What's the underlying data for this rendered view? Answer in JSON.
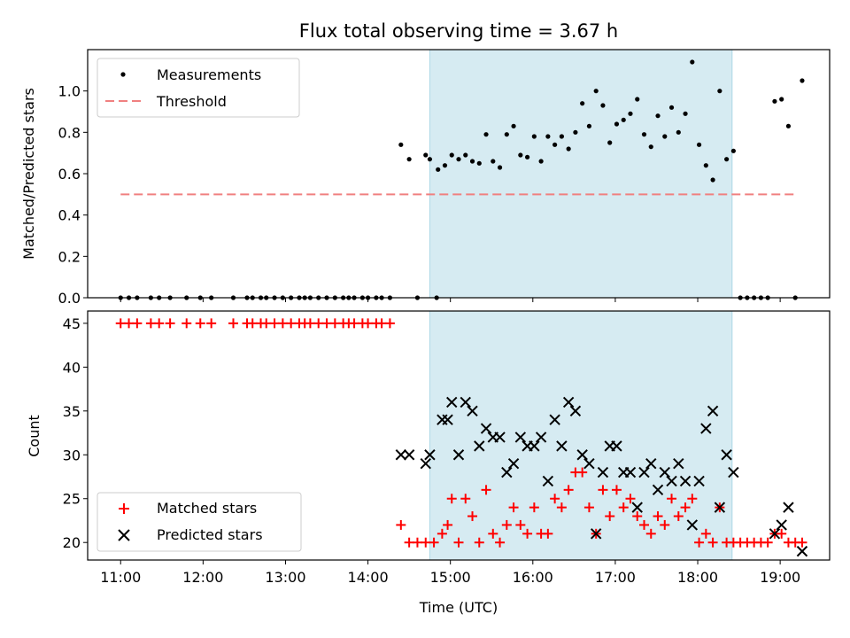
{
  "figure": {
    "title": "Flux total observing time = 3.67 h",
    "xlabel": "Time (UTC)"
  },
  "chart_data": [
    {
      "type": "scatter",
      "panel": "top",
      "ylabel": "Matched/Predicted stars",
      "xlim": [
        "10:36",
        "19:36"
      ],
      "ylim": [
        0,
        1.2
      ],
      "yticks": [
        "0.0",
        "0.2",
        "0.4",
        "0.6",
        "0.8",
        "1.0"
      ],
      "shaded_interval": [
        "14:45",
        "18:25"
      ],
      "threshold": {
        "name": "Threshold",
        "value": 0.5,
        "x": [
          "11:00",
          "19:10"
        ],
        "color": "#f08080"
      },
      "legend": {
        "position": "upper left",
        "entries": [
          "Measurements",
          "Threshold"
        ]
      },
      "series": [
        {
          "name": "Measurements",
          "color": "#000000",
          "points": [
            [
              "11:00",
              0
            ],
            [
              "11:06",
              0
            ],
            [
              "11:12",
              0
            ],
            [
              "11:22",
              0
            ],
            [
              "11:28",
              0
            ],
            [
              "11:36",
              0
            ],
            [
              "11:48",
              0
            ],
            [
              "11:58",
              0
            ],
            [
              "12:06",
              0
            ],
            [
              "12:22",
              0
            ],
            [
              "12:32",
              0
            ],
            [
              "12:36",
              0
            ],
            [
              "12:42",
              0
            ],
            [
              "12:46",
              0
            ],
            [
              "12:52",
              0
            ],
            [
              "12:58",
              0
            ],
            [
              "13:04",
              0
            ],
            [
              "13:10",
              0
            ],
            [
              "13:14",
              0
            ],
            [
              "13:18",
              0
            ],
            [
              "13:24",
              0
            ],
            [
              "13:30",
              0
            ],
            [
              "13:36",
              0
            ],
            [
              "13:42",
              0
            ],
            [
              "13:46",
              0
            ],
            [
              "13:50",
              0
            ],
            [
              "13:56",
              0
            ],
            [
              "14:00",
              0
            ],
            [
              "14:06",
              0
            ],
            [
              "14:10",
              0
            ],
            [
              "14:16",
              0
            ],
            [
              "14:24",
              0.74
            ],
            [
              "14:30",
              0.67
            ],
            [
              "14:36",
              0
            ],
            [
              "14:42",
              0.69
            ],
            [
              "14:50",
              0
            ],
            [
              "14:45",
              0.67
            ],
            [
              "14:51",
              0.62
            ],
            [
              "14:56",
              0.64
            ],
            [
              "15:01",
              0.69
            ],
            [
              "15:06",
              0.67
            ],
            [
              "15:11",
              0.69
            ],
            [
              "15:16",
              0.66
            ],
            [
              "15:21",
              0.65
            ],
            [
              "15:26",
              0.79
            ],
            [
              "15:31",
              0.66
            ],
            [
              "15:36",
              0.63
            ],
            [
              "15:41",
              0.79
            ],
            [
              "15:46",
              0.83
            ],
            [
              "15:51",
              0.69
            ],
            [
              "15:56",
              0.68
            ],
            [
              "16:01",
              0.78
            ],
            [
              "16:06",
              0.66
            ],
            [
              "16:11",
              0.78
            ],
            [
              "16:16",
              0.74
            ],
            [
              "16:21",
              0.78
            ],
            [
              "16:26",
              0.72
            ],
            [
              "16:31",
              0.8
            ],
            [
              "16:36",
              0.94
            ],
            [
              "16:41",
              0.83
            ],
            [
              "16:46",
              1.0
            ],
            [
              "16:51",
              0.93
            ],
            [
              "16:56",
              0.75
            ],
            [
              "17:01",
              0.84
            ],
            [
              "17:06",
              0.86
            ],
            [
              "17:11",
              0.89
            ],
            [
              "17:16",
              0.96
            ],
            [
              "17:21",
              0.79
            ],
            [
              "17:26",
              0.73
            ],
            [
              "17:31",
              0.88
            ],
            [
              "17:36",
              0.78
            ],
            [
              "17:41",
              0.92
            ],
            [
              "17:46",
              0.8
            ],
            [
              "17:51",
              0.89
            ],
            [
              "17:56",
              1.14
            ],
            [
              "18:01",
              0.74
            ],
            [
              "18:06",
              0.64
            ],
            [
              "18:11",
              0.57
            ],
            [
              "18:16",
              1.0
            ],
            [
              "18:21",
              0.67
            ],
            [
              "18:26",
              0.71
            ],
            [
              "18:31",
              0
            ],
            [
              "18:36",
              0
            ],
            [
              "18:41",
              0
            ],
            [
              "18:46",
              0
            ],
            [
              "18:51",
              0
            ],
            [
              "18:56",
              0.95
            ],
            [
              "19:01",
              0.96
            ],
            [
              "19:06",
              0.83
            ],
            [
              "19:11",
              0
            ],
            [
              "19:16",
              1.05
            ]
          ]
        }
      ]
    },
    {
      "type": "scatter",
      "panel": "bottom",
      "ylabel": "Count",
      "xlim": [
        "10:36",
        "19:36"
      ],
      "ylim": [
        18,
        46.4
      ],
      "yticks": [
        "20",
        "25",
        "30",
        "35",
        "40",
        "45"
      ],
      "xticks": [
        "11:00",
        "12:00",
        "13:00",
        "14:00",
        "15:00",
        "16:00",
        "17:00",
        "18:00",
        "19:00"
      ],
      "shaded_interval": [
        "14:45",
        "18:25"
      ],
      "legend": {
        "position": "lower left",
        "entries": [
          "Matched stars",
          "Predicted stars"
        ]
      },
      "series": [
        {
          "name": "Matched stars",
          "marker": "plus",
          "color": "#ff0000",
          "points": [
            [
              "11:00",
              45
            ],
            [
              "11:06",
              45
            ],
            [
              "11:12",
              45
            ],
            [
              "11:22",
              45
            ],
            [
              "11:28",
              45
            ],
            [
              "11:36",
              45
            ],
            [
              "11:48",
              45
            ],
            [
              "11:58",
              45
            ],
            [
              "12:06",
              45
            ],
            [
              "12:22",
              45
            ],
            [
              "12:32",
              45
            ],
            [
              "12:36",
              45
            ],
            [
              "12:42",
              45
            ],
            [
              "12:46",
              45
            ],
            [
              "12:52",
              45
            ],
            [
              "12:58",
              45
            ],
            [
              "13:04",
              45
            ],
            [
              "13:10",
              45
            ],
            [
              "13:14",
              45
            ],
            [
              "13:18",
              45
            ],
            [
              "13:24",
              45
            ],
            [
              "13:30",
              45
            ],
            [
              "13:36",
              45
            ],
            [
              "13:42",
              45
            ],
            [
              "13:46",
              45
            ],
            [
              "13:50",
              45
            ],
            [
              "13:56",
              45
            ],
            [
              "14:00",
              45
            ],
            [
              "14:06",
              45
            ],
            [
              "14:10",
              45
            ],
            [
              "14:16",
              45
            ],
            [
              "14:24",
              22
            ],
            [
              "14:30",
              20
            ],
            [
              "14:36",
              20
            ],
            [
              "14:42",
              20
            ],
            [
              "14:48",
              20
            ],
            [
              "14:54",
              21
            ],
            [
              "14:58",
              22
            ],
            [
              "15:01",
              25
            ],
            [
              "15:06",
              20
            ],
            [
              "15:11",
              25
            ],
            [
              "15:16",
              23
            ],
            [
              "15:21",
              20
            ],
            [
              "15:26",
              26
            ],
            [
              "15:31",
              21
            ],
            [
              "15:36",
              20
            ],
            [
              "15:41",
              22
            ],
            [
              "15:46",
              24
            ],
            [
              "15:51",
              22
            ],
            [
              "15:56",
              21
            ],
            [
              "16:01",
              24
            ],
            [
              "16:06",
              21
            ],
            [
              "16:11",
              21
            ],
            [
              "16:16",
              25
            ],
            [
              "16:21",
              24
            ],
            [
              "16:26",
              26
            ],
            [
              "16:31",
              28
            ],
            [
              "16:36",
              28
            ],
            [
              "16:41",
              24
            ],
            [
              "16:46",
              21
            ],
            [
              "16:51",
              26
            ],
            [
              "16:56",
              23
            ],
            [
              "17:01",
              26
            ],
            [
              "17:06",
              24
            ],
            [
              "17:11",
              25
            ],
            [
              "17:16",
              23
            ],
            [
              "17:21",
              22
            ],
            [
              "17:26",
              21
            ],
            [
              "17:31",
              23
            ],
            [
              "17:36",
              22
            ],
            [
              "17:41",
              25
            ],
            [
              "17:46",
              23
            ],
            [
              "17:51",
              24
            ],
            [
              "17:56",
              25
            ],
            [
              "18:01",
              20
            ],
            [
              "18:06",
              21
            ],
            [
              "18:11",
              20
            ],
            [
              "18:16",
              24
            ],
            [
              "18:21",
              20
            ],
            [
              "18:26",
              20
            ],
            [
              "18:31",
              20
            ],
            [
              "18:36",
              20
            ],
            [
              "18:41",
              20
            ],
            [
              "18:46",
              20
            ],
            [
              "18:51",
              20
            ],
            [
              "18:56",
              21
            ],
            [
              "19:01",
              21
            ],
            [
              "19:06",
              20
            ],
            [
              "19:11",
              20
            ],
            [
              "19:16",
              20
            ]
          ]
        },
        {
          "name": "Predicted stars",
          "marker": "x",
          "color": "#000000",
          "points": [
            [
              "14:24",
              30
            ],
            [
              "14:30",
              30
            ],
            [
              "14:42",
              29
            ],
            [
              "14:45",
              30
            ],
            [
              "14:54",
              34
            ],
            [
              "14:58",
              34
            ],
            [
              "15:01",
              36
            ],
            [
              "15:06",
              30
            ],
            [
              "15:11",
              36
            ],
            [
              "15:16",
              35
            ],
            [
              "15:21",
              31
            ],
            [
              "15:26",
              33
            ],
            [
              "15:31",
              32
            ],
            [
              "15:36",
              32
            ],
            [
              "15:41",
              28
            ],
            [
              "15:46",
              29
            ],
            [
              "15:51",
              32
            ],
            [
              "15:56",
              31
            ],
            [
              "16:01",
              31
            ],
            [
              "16:06",
              32
            ],
            [
              "16:11",
              27
            ],
            [
              "16:16",
              34
            ],
            [
              "16:21",
              31
            ],
            [
              "16:26",
              36
            ],
            [
              "16:31",
              35
            ],
            [
              "16:36",
              30
            ],
            [
              "16:41",
              29
            ],
            [
              "16:46",
              21
            ],
            [
              "16:51",
              28
            ],
            [
              "16:56",
              31
            ],
            [
              "17:01",
              31
            ],
            [
              "17:06",
              28
            ],
            [
              "17:11",
              28
            ],
            [
              "17:16",
              24
            ],
            [
              "17:21",
              28
            ],
            [
              "17:26",
              29
            ],
            [
              "17:31",
              26
            ],
            [
              "17:36",
              28
            ],
            [
              "17:41",
              27
            ],
            [
              "17:46",
              29
            ],
            [
              "17:51",
              27
            ],
            [
              "17:56",
              22
            ],
            [
              "18:01",
              27
            ],
            [
              "18:06",
              33
            ],
            [
              "18:11",
              35
            ],
            [
              "18:16",
              24
            ],
            [
              "18:21",
              30
            ],
            [
              "18:26",
              28
            ],
            [
              "18:56",
              21
            ],
            [
              "19:01",
              22
            ],
            [
              "19:06",
              24
            ],
            [
              "19:16",
              19
            ]
          ]
        }
      ]
    }
  ]
}
